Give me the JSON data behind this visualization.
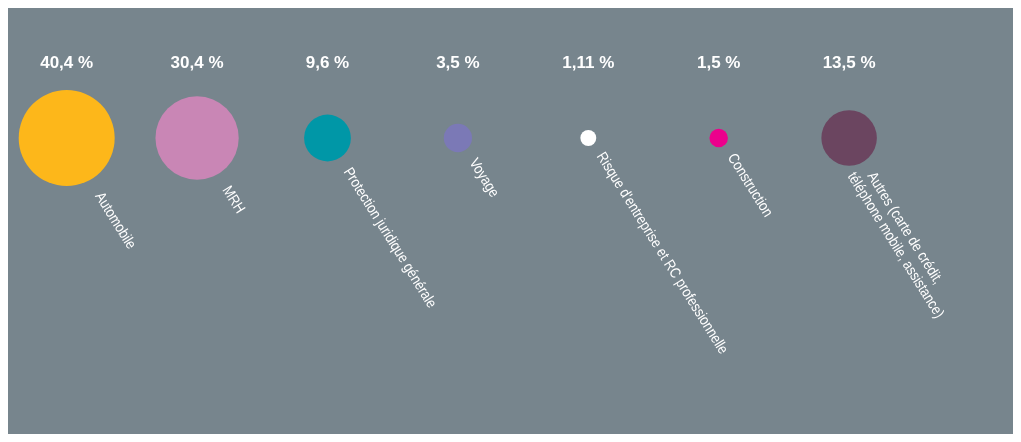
{
  "chart_data": {
    "type": "other",
    "categories": [
      "Automobile",
      "MRH",
      "Protection juridique générale",
      "Voyage",
      "Risque d'entreprise et RC professionnelle",
      "Construction",
      "Autres (carte de crédit,\ntéléphone mobile, assistance)"
    ],
    "values": [
      40.4,
      30.4,
      9.6,
      3.5,
      1.11,
      1.5,
      13.5
    ],
    "value_labels": [
      "40,4 %",
      "30,4 %",
      "9,6 %",
      "3,5 %",
      "1,11 %",
      "1,5 %",
      "13,5 %"
    ],
    "colors": [
      "#fdb71a",
      "#c986b5",
      "#0097a7",
      "#7b79b6",
      "#ffffff",
      "#ec008c",
      "#6b4560"
    ]
  }
}
